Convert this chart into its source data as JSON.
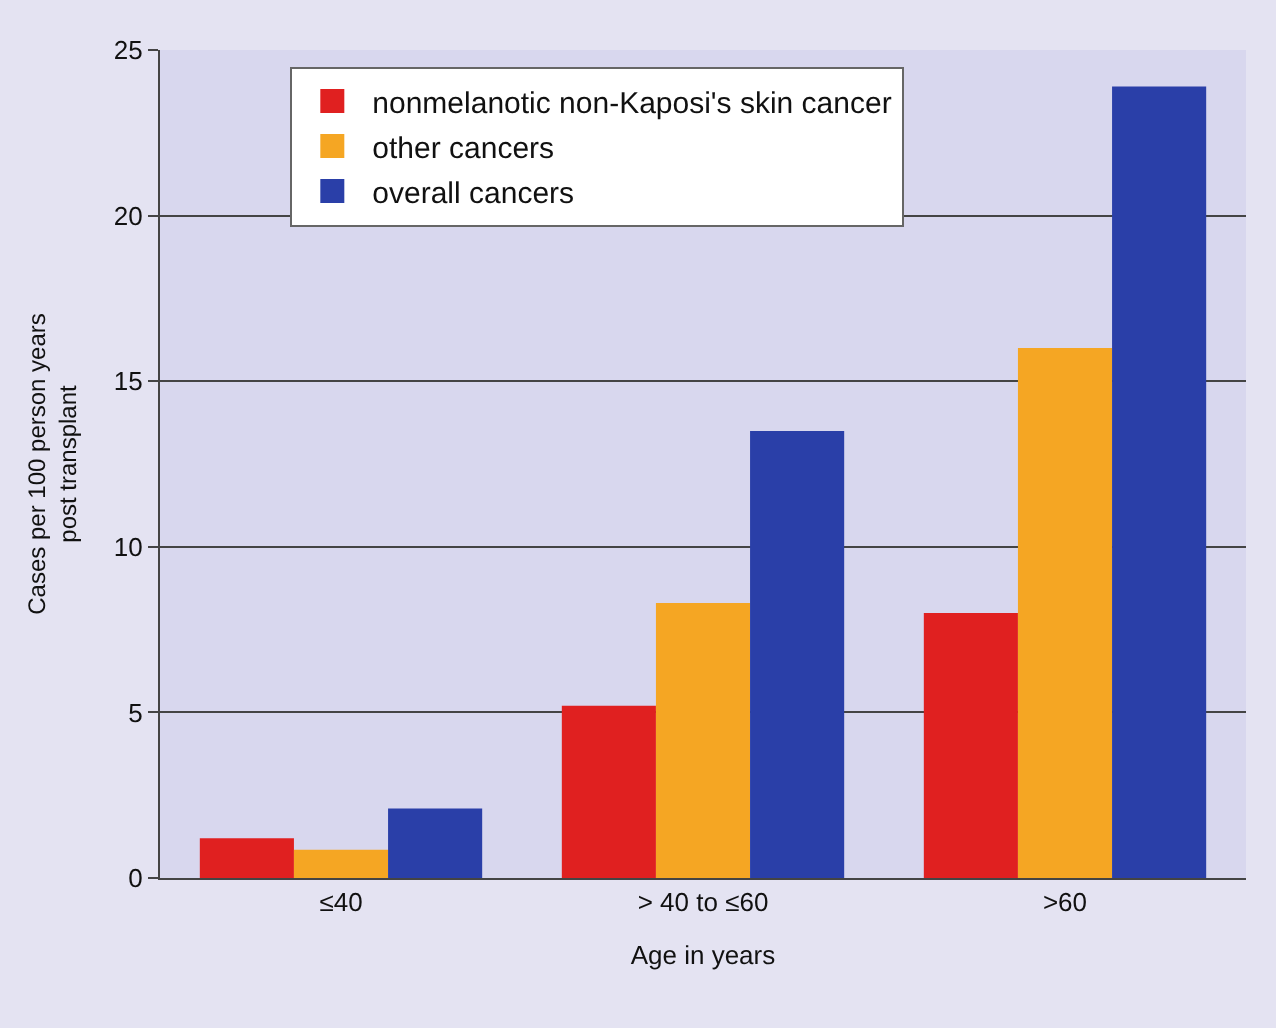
{
  "chart_data": {
    "type": "bar",
    "xlabel": "Age in years",
    "ylabel": "Cases per 100 person years\npost transplant",
    "categories": [
      "≤40",
      "> 40 to ≤60",
      ">60"
    ],
    "series": [
      {
        "name": "nonmelanotic non-Kaposi's skin cancer",
        "color": "#e02020",
        "values": [
          1.2,
          5.2,
          8.0
        ]
      },
      {
        "name": "other cancers",
        "color": "#f5a623",
        "values": [
          0.85,
          8.3,
          16.0
        ]
      },
      {
        "name": "overall cancers",
        "color": "#2a3fa8",
        "values": [
          2.1,
          13.5,
          23.9
        ]
      }
    ],
    "ylim": [
      0,
      25
    ],
    "yticks": [
      0,
      5,
      10,
      15,
      20,
      25
    ],
    "grid": "y",
    "legend": "top left"
  }
}
